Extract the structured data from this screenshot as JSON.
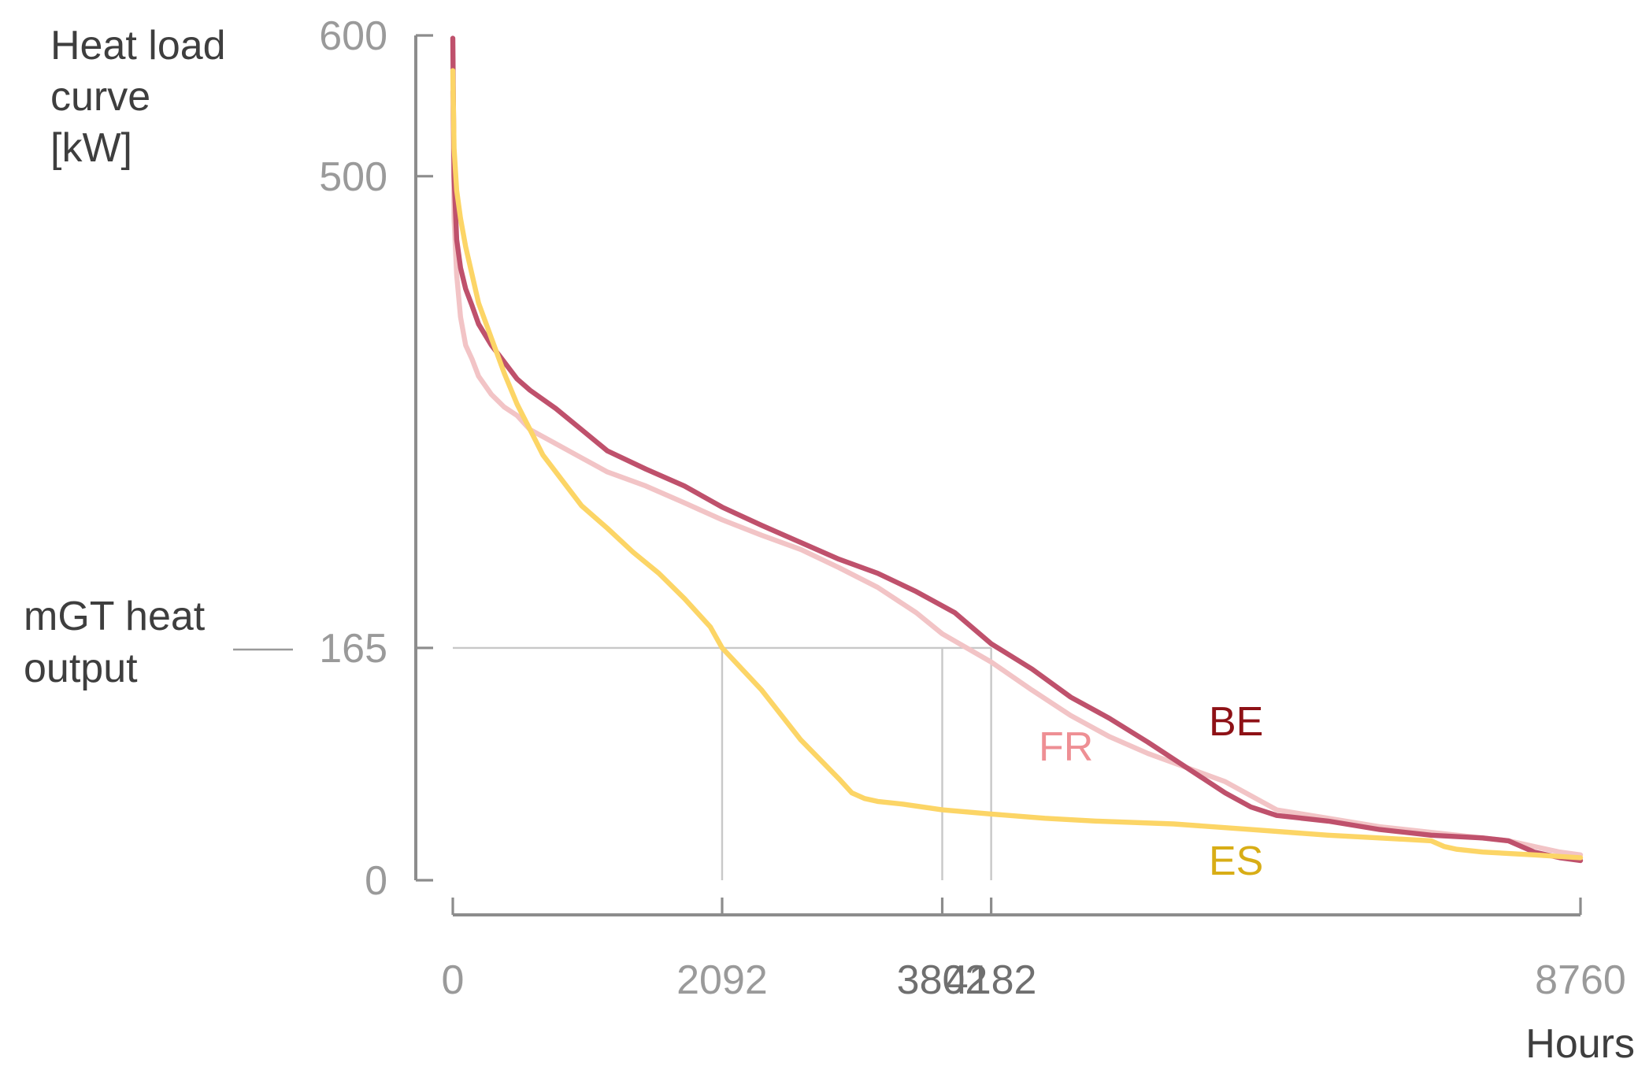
{
  "chart_data": {
    "type": "line",
    "ylabel_lines": [
      "Heat load",
      "curve",
      "[kW]"
    ],
    "xlabel": "Hours",
    "annotation_lines": [
      "mGT heat",
      "output"
    ],
    "xlim": [
      0,
      8760
    ],
    "ylim": [
      0,
      600
    ],
    "x_ticks": [
      {
        "value": 0,
        "label": "0",
        "color": "#9a9a9a"
      },
      {
        "value": 2092,
        "label": "2092",
        "color": "#9a9a9a"
      },
      {
        "value": 3802,
        "label": "3802",
        "color": "#6f6f6f"
      },
      {
        "value": 4182,
        "label": "4182",
        "color": "#6f6f6f"
      },
      {
        "value": 8760,
        "label": "8760",
        "color": "#9a9a9a"
      }
    ],
    "y_ticks": [
      {
        "value": 0,
        "label": "0"
      },
      {
        "value": 165,
        "label": "165"
      },
      {
        "value": 500,
        "label": "500"
      },
      {
        "value": 600,
        "label": "600"
      }
    ],
    "threshold": {
      "y": 165,
      "crossings_x": [
        2092,
        3802,
        4182
      ]
    },
    "grid": false,
    "series": [
      {
        "name": "FR",
        "color": "#f2c4c6",
        "label_color": "#ee8f94",
        "x": [
          0,
          10,
          30,
          60,
          100,
          150,
          200,
          300,
          400,
          500,
          600,
          800,
          1000,
          1200,
          1500,
          1800,
          2092,
          2400,
          2700,
          3000,
          3300,
          3600,
          3802,
          4182,
          4500,
          4800,
          5100,
          5400,
          5700,
          6000,
          6200,
          6400,
          6800,
          7200,
          7600,
          8000,
          8200,
          8400,
          8600,
          8760
        ],
        "values": [
          560,
          470,
          430,
          400,
          380,
          370,
          358,
          345,
          336,
          330,
          320,
          310,
          300,
          290,
          280,
          268,
          256,
          245,
          235,
          222,
          208,
          190,
          175,
          155,
          135,
          117,
          102,
          90,
          80,
          70,
          60,
          50,
          44,
          38,
          34,
          30,
          28,
          24,
          20,
          18
        ]
      },
      {
        "name": "BE",
        "color": "#bf516c",
        "label_color": "#8e1116",
        "x": [
          0,
          10,
          30,
          60,
          100,
          150,
          200,
          300,
          400,
          500,
          600,
          800,
          1000,
          1200,
          1500,
          1800,
          2092,
          2400,
          2700,
          3000,
          3300,
          3600,
          3900,
          4182,
          4500,
          4800,
          5100,
          5400,
          5700,
          6000,
          6200,
          6400,
          6800,
          7200,
          7600,
          8000,
          8200,
          8300,
          8400,
          8600,
          8760
        ],
        "values": [
          598,
          500,
          455,
          435,
          420,
          408,
          395,
          380,
          368,
          356,
          348,
          335,
          320,
          305,
          292,
          280,
          265,
          252,
          240,
          228,
          218,
          205,
          190,
          168,
          150,
          130,
          115,
          98,
          80,
          62,
          52,
          46,
          42,
          36,
          32,
          30,
          28,
          24,
          20,
          16,
          14
        ]
      },
      {
        "name": "ES",
        "color": "#fcd566",
        "label_color": "#d8ad16",
        "x": [
          0,
          10,
          30,
          60,
          100,
          200,
          300,
          400,
          500,
          600,
          700,
          800,
          900,
          1000,
          1200,
          1400,
          1600,
          1800,
          2000,
          2092,
          2400,
          2700,
          3000,
          3100,
          3200,
          3300,
          3500,
          3802,
          4182,
          4600,
          5000,
          5600,
          6200,
          6800,
          7200,
          7600,
          7700,
          7800,
          8000,
          8400,
          8760
        ],
        "values": [
          575,
          520,
          490,
          470,
          450,
          410,
          385,
          360,
          338,
          320,
          302,
          290,
          278,
          266,
          250,
          233,
          218,
          200,
          180,
          165,
          135,
          100,
          72,
          62,
          58,
          56,
          54,
          50,
          47,
          44,
          42,
          40,
          36,
          32,
          30,
          28,
          24,
          22,
          20,
          18,
          16
        ]
      }
    ]
  }
}
